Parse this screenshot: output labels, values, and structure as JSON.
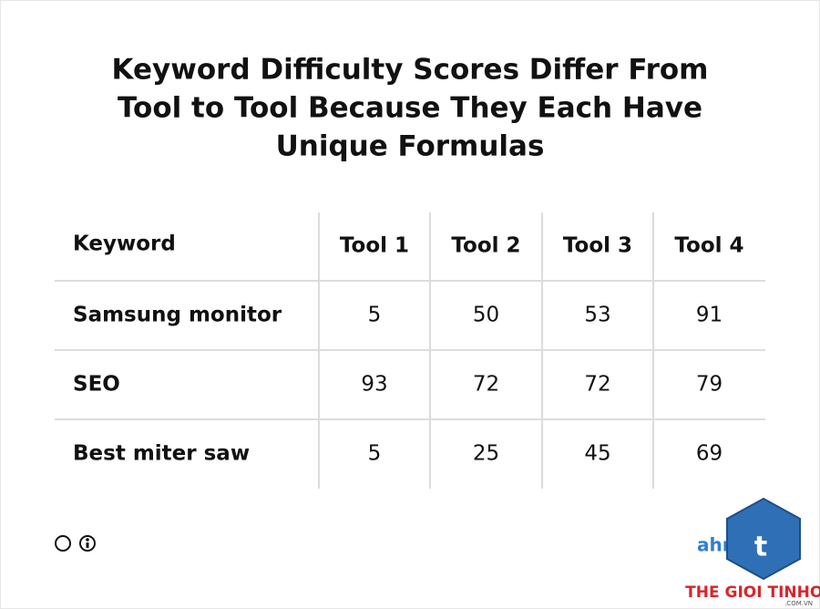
{
  "header": {
    "title": [
      "Keyword Difficulty Scores Differ From",
      "Tool to Tool Because They Each Have",
      "Unique Formulas"
    ]
  },
  "table": {
    "columns": [
      "Keyword",
      "Tool 1",
      "Tool 2",
      "Tool 3",
      "Tool 4"
    ],
    "rows": [
      [
        "Samsung monitor",
        5,
        50,
        53,
        91
      ],
      [
        "SEO",
        93,
        72,
        72,
        79
      ],
      [
        "Best miter saw",
        5,
        25,
        45,
        69
      ]
    ]
  },
  "footer": {
    "brand": "ahrefs",
    "watermark": "THE GIOI TINHOC",
    "watermark_domain": ".COM.VN"
  }
}
